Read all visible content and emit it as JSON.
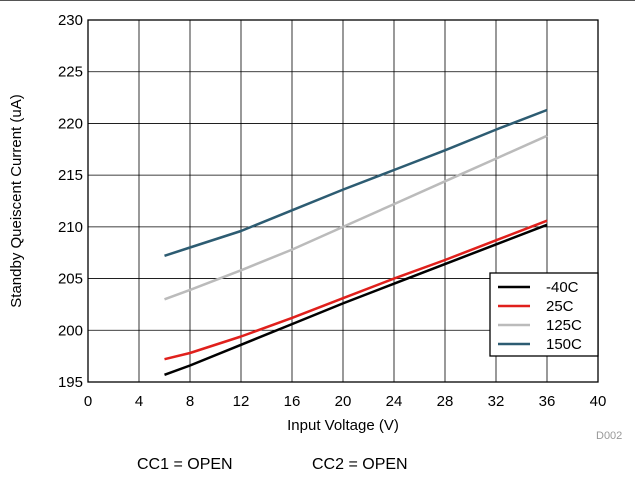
{
  "chart_data": {
    "type": "line",
    "xlabel": "Input Voltage (V)",
    "ylabel": "Standby Queiscent Current (uA)",
    "xlim": [
      0,
      40
    ],
    "ylim": [
      195,
      230
    ],
    "xticks": [
      0,
      4,
      8,
      12,
      16,
      20,
      24,
      28,
      32,
      36,
      40
    ],
    "yticks": [
      195,
      200,
      205,
      210,
      215,
      220,
      225,
      230
    ],
    "grid": true,
    "legend_position": "bottom-right",
    "series": [
      {
        "name": "-40C",
        "color": "#000000",
        "x": [
          6,
          8,
          12,
          16,
          20,
          24,
          28,
          32,
          36
        ],
        "y": [
          195.7,
          196.6,
          198.6,
          200.6,
          202.6,
          204.5,
          206.4,
          208.3,
          210.2
        ]
      },
      {
        "name": "25C",
        "color": "#e0201c",
        "x": [
          6,
          8,
          12,
          16,
          20,
          24,
          28,
          32,
          36
        ],
        "y": [
          197.2,
          197.8,
          199.4,
          201.2,
          203.1,
          205.0,
          206.8,
          208.7,
          210.6
        ]
      },
      {
        "name": "125C",
        "color": "#bbbbbb",
        "x": [
          6,
          8,
          12,
          16,
          20,
          24,
          28,
          32,
          36
        ],
        "y": [
          203.0,
          203.9,
          205.8,
          207.8,
          210.0,
          212.2,
          214.4,
          216.6,
          218.8
        ]
      },
      {
        "name": "150C",
        "color": "#2d5c72",
        "x": [
          6,
          8,
          12,
          16,
          20,
          24,
          28,
          32,
          36
        ],
        "y": [
          207.2,
          208.0,
          209.6,
          211.6,
          213.6,
          215.5,
          217.4,
          219.4,
          221.3
        ]
      }
    ]
  },
  "figure_id": "D002",
  "footnote_cc1": "CC1 = OPEN",
  "footnote_cc2": "CC2 = OPEN"
}
